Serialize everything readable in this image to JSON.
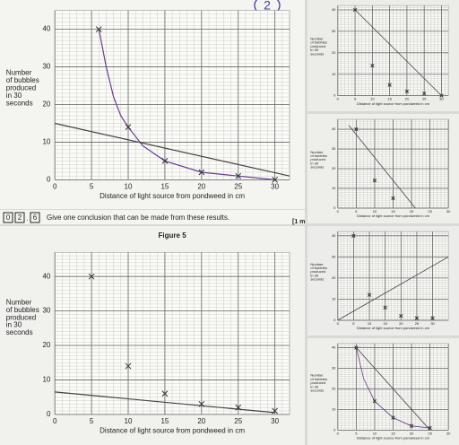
{
  "annotation": "2",
  "question": {
    "number": [
      "0",
      "2",
      "6"
    ],
    "text": "Give one conclusion that can be made from these results.",
    "marks": "[1 m"
  },
  "chart_data": [
    {
      "type": "scatter",
      "xlabel": "Distance of light source from pondweed in cm",
      "ylabel": [
        "Number",
        "of bubbles",
        "produced",
        "in 30",
        "seconds"
      ],
      "xlim": [
        0,
        32
      ],
      "ylim": [
        0,
        45
      ],
      "xticks": [
        0,
        5,
        10,
        15,
        20,
        25,
        30
      ],
      "yticks": [
        0,
        10,
        20,
        30,
        40
      ],
      "points": {
        "x": [
          6,
          10,
          15,
          20,
          25,
          30
        ],
        "y": [
          40,
          14,
          5,
          2,
          1,
          0
        ],
        "color": "#333"
      },
      "lines": [
        {
          "color": "#6a3d8f",
          "x": [
            6,
            7,
            8,
            9,
            10,
            12,
            15,
            20,
            25,
            30
          ],
          "values": [
            40,
            30,
            22,
            17,
            14,
            9,
            5,
            2,
            1,
            0
          ]
        },
        {
          "color": "#444",
          "x": [
            0,
            32
          ],
          "values": [
            15,
            1
          ]
        }
      ]
    },
    {
      "type": "scatter",
      "title": "Figure 5",
      "xlabel": "Distance of light source from pondweed in cm",
      "ylabel": [
        "Number",
        "of bubbles",
        "produced",
        "in 30",
        "seconds"
      ],
      "xlim": [
        0,
        32
      ],
      "ylim": [
        0,
        47
      ],
      "xticks": [
        0,
        5,
        10,
        15,
        20,
        25,
        30
      ],
      "yticks": [
        0,
        10,
        20,
        30,
        40
      ],
      "points": {
        "x": [
          5,
          10,
          15,
          20,
          25,
          30
        ],
        "y": [
          40,
          14,
          6,
          3,
          2,
          1
        ],
        "color": "#333"
      },
      "lines": [
        {
          "color": "#444",
          "x": [
            0,
            30
          ],
          "values": [
            6.5,
            0.5
          ]
        }
      ]
    },
    {
      "type": "scatter",
      "xlabel": "Distance of light source from pondweed in cm",
      "ylabel": [
        "Number",
        "of bubbles",
        "produced",
        "in 30",
        "seconds"
      ],
      "xlim": [
        0,
        32
      ],
      "ylim": [
        0,
        42
      ],
      "xticks": [
        0,
        5,
        10,
        15,
        20,
        25,
        30
      ],
      "yticks": [
        0,
        10,
        20,
        30,
        40
      ],
      "points": {
        "x": [
          5,
          10,
          15,
          20,
          25,
          30
        ],
        "y": [
          40,
          14,
          5,
          2,
          1,
          0
        ],
        "color": "#333"
      },
      "lines": [
        {
          "color": "#444",
          "x": [
            5,
            30
          ],
          "values": [
            40,
            0
          ]
        }
      ]
    },
    {
      "type": "scatter",
      "xlabel": "Distance of light source from pondweed in cm",
      "ylabel": [
        "Number",
        "of bubbles",
        "produced",
        "in 30",
        "seconds"
      ],
      "xlim": [
        0,
        30
      ],
      "ylim": [
        0,
        45
      ],
      "xticks": [
        0,
        5,
        10,
        15,
        20,
        25,
        30
      ],
      "yticks": [
        0,
        10,
        20,
        30,
        40
      ],
      "points": {
        "x": [
          5,
          10,
          15
        ],
        "y": [
          40,
          14,
          5
        ],
        "color": "#333"
      },
      "lines": [
        {
          "color": "#444",
          "x": [
            3,
            21
          ],
          "values": [
            42,
            0
          ]
        }
      ]
    },
    {
      "type": "scatter",
      "xlabel": "Distance of light source from pondweed in cm",
      "ylabel": [
        "Number",
        "of bubbles",
        "produced",
        "in 30",
        "seconds"
      ],
      "xlim": [
        0,
        35
      ],
      "ylim": [
        0,
        42
      ],
      "xticks": [
        0,
        5,
        10,
        15,
        20,
        25,
        30
      ],
      "yticks": [
        0,
        10,
        20,
        30,
        40
      ],
      "points": {
        "x": [
          5,
          10,
          15,
          20,
          25,
          30
        ],
        "y": [
          40,
          12,
          6,
          2,
          1,
          1
        ],
        "color": "#333"
      },
      "lines": [
        {
          "color": "#444",
          "x": [
            0,
            35
          ],
          "values": [
            0,
            30
          ]
        }
      ]
    },
    {
      "type": "scatter",
      "xlabel": "Distance of light source from pondweed in cm",
      "ylabel": [
        "Number",
        "of bubbles",
        "produced",
        "in 30",
        "seconds"
      ],
      "xlim": [
        0,
        30
      ],
      "ylim": [
        0,
        42
      ],
      "xticks": [
        0,
        5,
        10,
        15,
        20,
        25,
        30
      ],
      "yticks": [
        0,
        10,
        20,
        30,
        40
      ],
      "points": {
        "x": [
          5,
          10,
          15,
          20,
          25
        ],
        "y": [
          40,
          14,
          6,
          2,
          1
        ],
        "color": "#333"
      },
      "lines": [
        {
          "color": "#6a3d8f",
          "x": [
            5,
            7,
            10,
            15,
            20,
            25
          ],
          "values": [
            40,
            25,
            14,
            6,
            2,
            1
          ]
        },
        {
          "color": "#444",
          "x": [
            5,
            25
          ],
          "values": [
            40,
            0
          ]
        }
      ]
    }
  ]
}
